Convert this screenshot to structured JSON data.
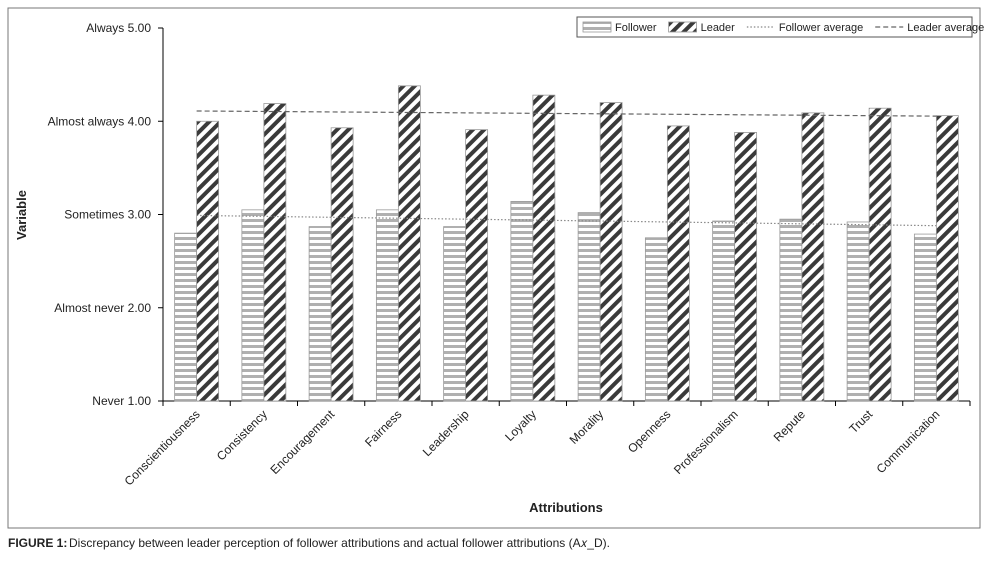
{
  "chart_data": {
    "type": "bar",
    "caption_label": "FIGURE 1:",
    "caption": "Discrepancy between leader perception of follower attributions and actual follower attributions (A𝑥_D).",
    "x_label": "Attributions",
    "y_label": "Variable",
    "categories": [
      "Conscientiousness",
      "Consistency",
      "Encouragement",
      "Fairness",
      "Leadership",
      "Loyalty",
      "Morality",
      "Openness",
      "Professionalism",
      "Repute",
      "Trust",
      "Communication"
    ],
    "ylim": [
      1,
      5
    ],
    "yticks": [
      {
        "value": 1,
        "label": "Never 1.00"
      },
      {
        "value": 2,
        "label": "Almost never 2.00"
      },
      {
        "value": 3,
        "label": "Sometimes 3.00"
      },
      {
        "value": 4,
        "label": "Almost always 4.00"
      },
      {
        "value": 5,
        "label": "Always 5.00"
      }
    ],
    "legend": "top-right",
    "series": [
      {
        "name": "Follower",
        "type": "bar",
        "pattern": "horizontal",
        "color": "#b0b0b0",
        "values": [
          2.8,
          3.05,
          2.87,
          3.05,
          2.87,
          3.14,
          3.02,
          2.75,
          2.93,
          2.95,
          2.92,
          2.79
        ]
      },
      {
        "name": "Leader",
        "type": "bar",
        "pattern": "diagonal",
        "color": "#3a3a3a",
        "values": [
          4.0,
          4.19,
          3.93,
          4.38,
          3.91,
          4.28,
          4.2,
          3.95,
          3.88,
          4.09,
          4.14,
          4.06
        ]
      },
      {
        "name": "Follower average",
        "type": "line",
        "dash": "dotted",
        "color": "#888888",
        "values": [
          2.99,
          2.98,
          2.97,
          2.96,
          2.95,
          2.94,
          2.93,
          2.92,
          2.91,
          2.9,
          2.89,
          2.88
        ]
      },
      {
        "name": "Leader average",
        "type": "line",
        "dash": "dashed",
        "color": "#666666",
        "values": [
          4.11,
          4.105,
          4.1,
          4.095,
          4.09,
          4.085,
          4.08,
          4.075,
          4.07,
          4.065,
          4.06,
          4.055
        ]
      }
    ]
  }
}
